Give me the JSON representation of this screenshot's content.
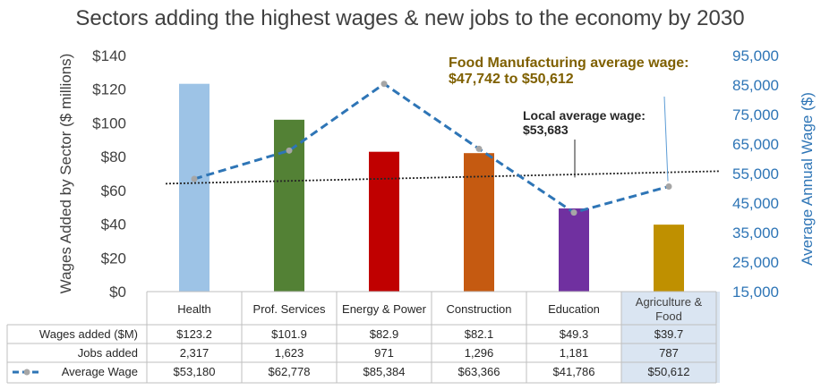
{
  "chart_data": {
    "type": "bar",
    "title": "Sectors adding the highest wages & new jobs to the economy by 2030",
    "ylabel": "Wages Added by Sector ($ millions)",
    "y2label": "Average Annual Wage ($)",
    "ylim": [
      0,
      140
    ],
    "y2lim": [
      15000,
      95000
    ],
    "yticks": [
      "$0",
      "$20",
      "$40",
      "$60",
      "$80",
      "$100",
      "$120",
      "$140"
    ],
    "y2ticks": [
      "15,000",
      "25,000",
      "35,000",
      "45,000",
      "55,000",
      "65,000",
      "75,000",
      "85,000",
      "95,000"
    ],
    "categories": [
      "Health",
      "Prof. Services",
      "Energy & Power",
      "Construction",
      "Education",
      "Agriculture & Food"
    ],
    "bar_colors": [
      "#9dc3e6",
      "#538135",
      "#c00000",
      "#c55a11",
      "#7030a0",
      "#bf9000"
    ],
    "highlight_category": "Agriculture & Food",
    "series": [
      {
        "name": "Wages added ($M)",
        "type": "bar",
        "values": [
          123.2,
          101.9,
          82.9,
          82.1,
          49.3,
          39.7
        ]
      },
      {
        "name": "Jobs added",
        "type": "table",
        "values": [
          2317,
          1623,
          971,
          1296,
          1181,
          787
        ]
      },
      {
        "name": "Average Wage",
        "type": "line",
        "axis": "right",
        "color": "#2e75b6",
        "values": [
          53180,
          62778,
          85384,
          63366,
          41786,
          50612
        ]
      }
    ],
    "reference_line": {
      "value": 53683,
      "axis": "right"
    },
    "table": {
      "rows": [
        {
          "label": "Wages added ($M)",
          "cells": [
            "$123.2",
            "$101.9",
            "$82.9",
            "$82.1",
            "$49.3",
            "$39.7"
          ]
        },
        {
          "label": "Jobs added",
          "cells": [
            "2,317",
            "1,623",
            "971",
            "1,296",
            "1,181",
            "787"
          ]
        },
        {
          "label": "Average Wage",
          "cells": [
            "$53,180",
            "$62,778",
            "$85,384",
            "$63,366",
            "$41,786",
            "$50,612"
          ]
        }
      ]
    },
    "annotations": {
      "food_line1": "Food Manufacturing average wage:",
      "food_line2": "$47,742 to $50,612",
      "local_line1": "Local average wage:",
      "local_line2": "$53,683"
    }
  },
  "colors": {
    "annotation_gold": "#7f6000",
    "axis_blue": "#2e75b6",
    "highlight_fill": "#dae5f2"
  }
}
